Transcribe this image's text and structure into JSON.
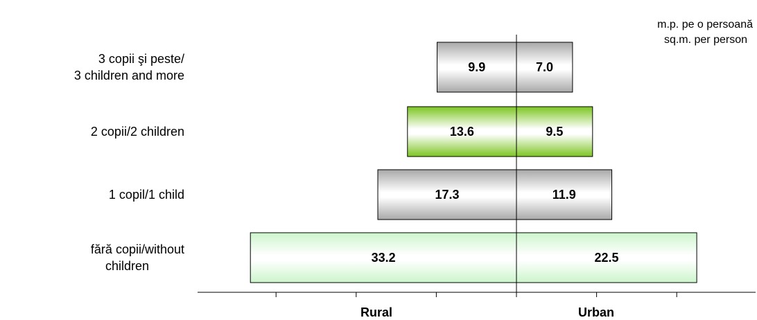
{
  "chart_data": {
    "type": "bar",
    "orientation": "horizontal-butterfly",
    "unit_text": [
      "m.p. pe o persoană",
      "sq.m. per person"
    ],
    "categories": [
      [
        "3 copii şi peste/",
        "3 children and more"
      ],
      [
        "2 copii/2 children"
      ],
      [
        "1 copil/1 child"
      ],
      [
        "fără copii/without",
        "children"
      ]
    ],
    "series": [
      {
        "name": "Rural",
        "values": [
          9.9,
          13.6,
          17.3,
          33.2
        ]
      },
      {
        "name": "Urban",
        "values": [
          7.0,
          9.5,
          11.9,
          22.5
        ]
      }
    ],
    "value_labels": {
      "Rural": [
        "9.9",
        "13.6",
        "17.3",
        "33.2"
      ],
      "Urban": [
        "7.0",
        "9.5",
        "11.9",
        "22.5"
      ]
    },
    "xlim": [
      -40,
      40
    ],
    "x_tick_step": 10,
    "bar_styles": [
      "grey",
      "green",
      "grey",
      "lightgreen"
    ],
    "colors": {
      "grey_edge": "#a8a8a8",
      "grey_mid": "#ffffff",
      "green_edge": "#7cc522",
      "green_mid": "#ffffff",
      "lightgreen_edge": "#ccf5cc",
      "lightgreen_mid": "#ffffff",
      "bar_border": "#000000"
    }
  }
}
